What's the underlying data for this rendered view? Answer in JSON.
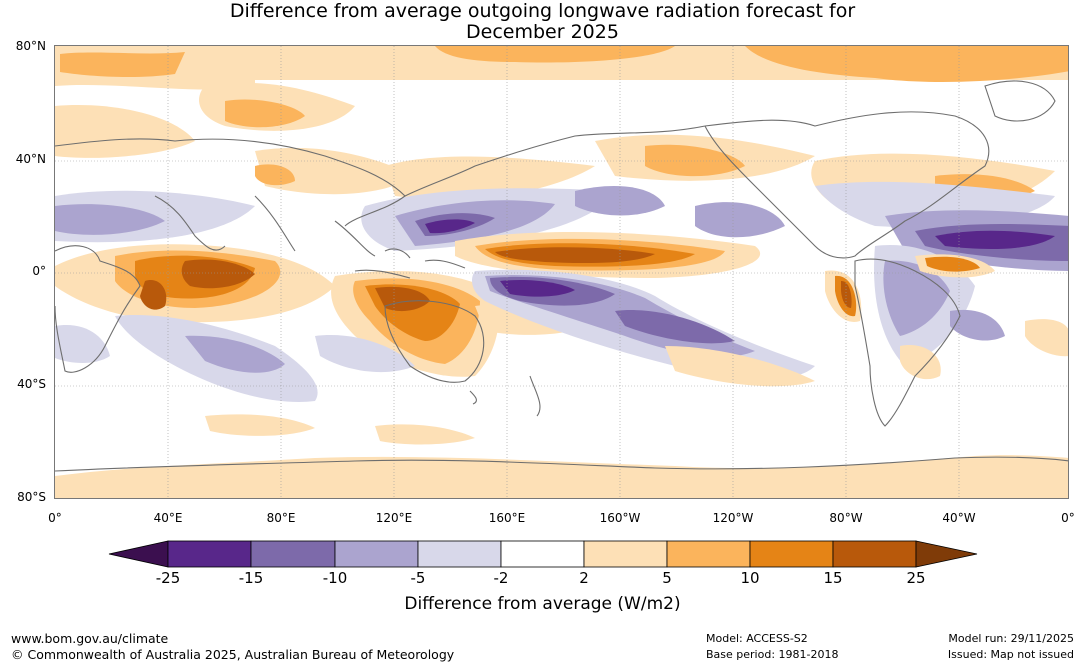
{
  "title": {
    "line1": "Difference from average outgoing longwave radiation forecast for",
    "line2": "December 2025"
  },
  "latitude_labels": [
    "80°N",
    "40°N",
    "0°",
    "40°S",
    "80°S"
  ],
  "longitude_labels": [
    "0°",
    "40°E",
    "80°E",
    "120°E",
    "160°E",
    "160°W",
    "120°W",
    "80°W",
    "40°W",
    "0°"
  ],
  "colorbar": {
    "title": "Difference from average (W/m2)",
    "tick_labels": [
      "-25",
      "-15",
      "-10",
      "-5",
      "-2",
      "2",
      "5",
      "10",
      "15",
      "25"
    ],
    "colors": {
      "below_min": "#3b0f4f",
      "lt_m15": "#58278a",
      "m15_m10": "#7d6aaa",
      "m10_m5": "#aba4cf",
      "m5_m2": "#d8d8ea",
      "m2_2": "#ffffff",
      "p2_5": "#fde0b6",
      "p5_10": "#fbb45c",
      "p10_15": "#e58416",
      "p15_25": "#b8590b",
      "above_max": "#7f3b08"
    }
  },
  "footer": {
    "website": "www.bom.gov.au/climate",
    "copyright": "© Commonwealth of Australia 2025, Australian Bureau of Meteorology",
    "model": "Model: ACCESS-S2",
    "base_period": "Base period: 1981-2018",
    "model_run": "Model run: 29/11/2025",
    "issued": "Issued: Map not issued"
  }
}
